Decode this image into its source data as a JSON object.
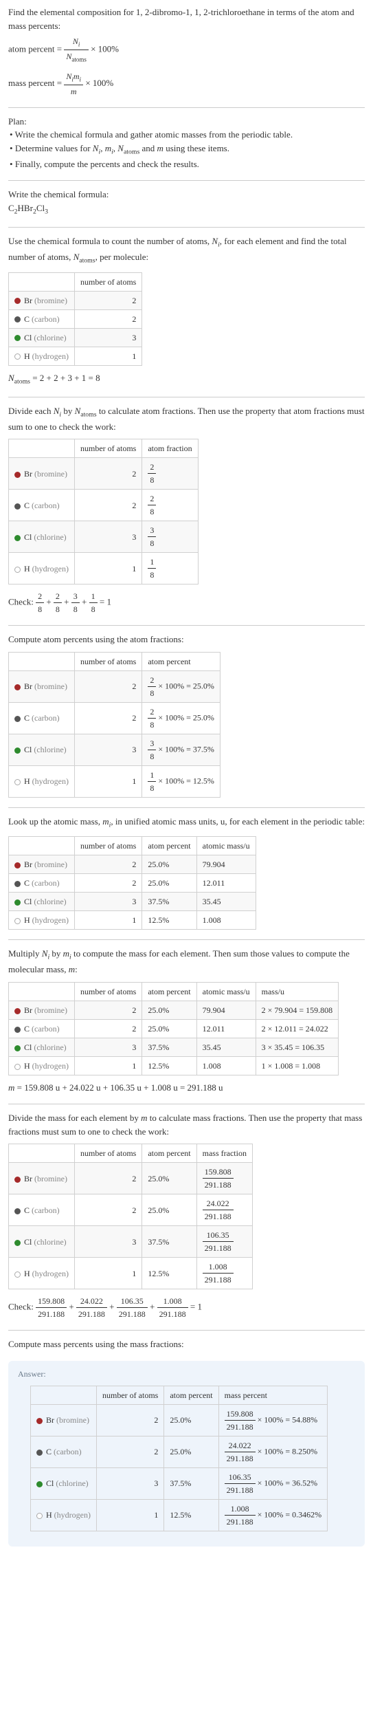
{
  "intro": {
    "line1": "Find the elemental composition for 1, 2-dibromo-1, 1, 2-trichloroethane in terms of the atom and mass percents:",
    "atom_percent_lhs": "atom percent =",
    "atom_percent_num": "N_i",
    "atom_percent_den": "N_atoms",
    "times100": "× 100%",
    "mass_percent_lhs": "mass percent =",
    "mass_percent_num": "N_i m_i",
    "mass_percent_den": "m"
  },
  "plan": {
    "title": "Plan:",
    "b1": "Write the chemical formula and gather atomic masses from the periodic table.",
    "b2_before": "Determine values for ",
    "b2_after": " using these items.",
    "b3": "Finally, compute the percents and check the results."
  },
  "write_formula": {
    "title": "Write the chemical formula:"
  },
  "count": {
    "title_before": "Use the chemical formula to count the number of atoms, ",
    "title_mid": ", for each element and find the total number of atoms, ",
    "title_after": ", per molecule:",
    "col_atoms": "number of atoms",
    "elements": {
      "br": {
        "label": "Br",
        "paren": "(bromine)",
        "n": "2"
      },
      "c": {
        "label": "C",
        "paren": "(carbon)",
        "n": "2"
      },
      "cl": {
        "label": "Cl",
        "paren": "(chlorine)",
        "n": "3"
      },
      "h": {
        "label": "H",
        "paren": "(hydrogen)",
        "n": "1"
      }
    },
    "natoms_eq": "= 2 + 2 + 3 + 1 = 8"
  },
  "frac_section": {
    "title_before": "Divide each ",
    "title_mid": " by ",
    "title_after": " to calculate atom fractions. Then use the property that atom fractions must sum to one to check the work:",
    "col_atoms": "number of atoms",
    "col_frac": "atom fraction",
    "rows": {
      "br": {
        "n": "2",
        "num": "2",
        "den": "8"
      },
      "c": {
        "n": "2",
        "num": "2",
        "den": "8"
      },
      "cl": {
        "n": "3",
        "num": "3",
        "den": "8"
      },
      "h": {
        "n": "1",
        "num": "1",
        "den": "8"
      }
    },
    "check_label": "Check: ",
    "check_eq": " = 1"
  },
  "atom_pct": {
    "title": "Compute atom percents using the atom fractions:",
    "col_atoms": "number of atoms",
    "col_pct": "atom percent",
    "rows": {
      "br": {
        "n": "2",
        "num": "2",
        "den": "8",
        "res": "× 100% = 25.0%"
      },
      "c": {
        "n": "2",
        "num": "2",
        "den": "8",
        "res": "× 100% = 25.0%"
      },
      "cl": {
        "n": "3",
        "num": "3",
        "den": "8",
        "res": "× 100% = 37.5%"
      },
      "h": {
        "n": "1",
        "num": "1",
        "den": "8",
        "res": "× 100% = 12.5%"
      }
    }
  },
  "atomic_mass": {
    "title_before": "Look up the atomic mass, ",
    "title_after": ", in unified atomic mass units, u, for each element in the periodic table:",
    "col_atoms": "number of atoms",
    "col_pct": "atom percent",
    "col_mass": "atomic mass/u",
    "rows": {
      "br": {
        "n": "2",
        "p": "25.0%",
        "m": "79.904"
      },
      "c": {
        "n": "2",
        "p": "25.0%",
        "m": "12.011"
      },
      "cl": {
        "n": "3",
        "p": "37.5%",
        "m": "35.45"
      },
      "h": {
        "n": "1",
        "p": "12.5%",
        "m": "1.008"
      }
    }
  },
  "mass_calc": {
    "title_before": "Multiply ",
    "title_mid": " by ",
    "title_after": " to compute the mass for each element. Then sum those values to compute the molecular mass, ",
    "col_atoms": "number of atoms",
    "col_pct": "atom percent",
    "col_amass": "atomic mass/u",
    "col_mass": "mass/u",
    "rows": {
      "br": {
        "n": "2",
        "p": "25.0%",
        "am": "79.904",
        "calc": "2 × 79.904 = 159.808"
      },
      "c": {
        "n": "2",
        "p": "25.0%",
        "am": "12.011",
        "calc": "2 × 12.011 = 24.022"
      },
      "cl": {
        "n": "3",
        "p": "37.5%",
        "am": "35.45",
        "calc": "3 × 35.45 = 106.35"
      },
      "h": {
        "n": "1",
        "p": "12.5%",
        "am": "1.008",
        "calc": "1 × 1.008 = 1.008"
      }
    },
    "sum": " = 159.808 u + 24.022 u + 106.35 u + 1.008 u = 291.188 u"
  },
  "mass_frac": {
    "title_before": "Divide the mass for each element by ",
    "title_after": " to calculate mass fractions. Then use the property that mass fractions must sum to one to check the work:",
    "col_atoms": "number of atoms",
    "col_pct": "atom percent",
    "col_mfrac": "mass fraction",
    "den": "291.188",
    "rows": {
      "br": {
        "n": "2",
        "p": "25.0%",
        "num": "159.808"
      },
      "c": {
        "n": "2",
        "p": "25.0%",
        "num": "24.022"
      },
      "cl": {
        "n": "3",
        "p": "37.5%",
        "num": "106.35"
      },
      "h": {
        "n": "1",
        "p": "12.5%",
        "num": "1.008"
      }
    },
    "check_label": "Check: ",
    "check_eq": " = 1"
  },
  "mass_pct": {
    "title": "Compute mass percents using the mass fractions:"
  },
  "answer": {
    "label": "Answer:",
    "col_atoms": "number of atoms",
    "col_pct": "atom percent",
    "col_mpct": "mass percent",
    "den": "291.188",
    "rows": {
      "br": {
        "n": "2",
        "p": "25.0%",
        "num": "159.808",
        "res": "× 100% = 54.88%"
      },
      "c": {
        "n": "2",
        "p": "25.0%",
        "num": "24.022",
        "res": "× 100% = 8.250%"
      },
      "cl": {
        "n": "3",
        "p": "37.5%",
        "num": "106.35",
        "res": "× 100% = 36.52%"
      },
      "h": {
        "n": "1",
        "p": "12.5%",
        "num": "1.008",
        "res": "× 100% = 0.3462%"
      }
    }
  },
  "colors": {
    "br": "#a52a2a",
    "c": "#555555",
    "cl": "#2e8b2e",
    "h": "#ffffff",
    "rule": "#cccccc",
    "answer_bg": "#eef4fb"
  }
}
